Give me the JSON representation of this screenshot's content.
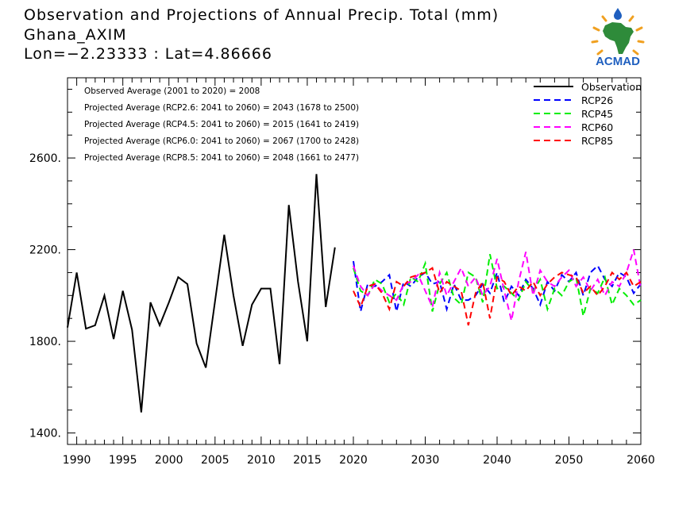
{
  "header": {
    "title": "Observation and Projections of Annual Precip. Total (mm)",
    "location": "Ghana_AXIM",
    "coords": "Lon=−2.23333 : Lat=4.86666"
  },
  "logo": {
    "text": "ACMAD",
    "icon": "africa-map-logo",
    "colors": {
      "africa": "#2e8b3a",
      "drop": "#1f5fbf",
      "sun": "#f0a020",
      "text": "#1f5fbf"
    }
  },
  "chart_data": {
    "type": "line",
    "ylim": [
      1350,
      2950
    ],
    "xlim": [
      1989,
      2060
    ],
    "yticks": [
      1400,
      1800,
      2200,
      2600
    ],
    "ytick_labels": [
      "1400.",
      "1800.",
      "2200.",
      "2600."
    ],
    "xticks": [
      1990,
      1995,
      2000,
      2005,
      2010,
      2015,
      2020,
      2030,
      2040,
      2050,
      2060
    ],
    "xtick_labels": [
      "1990",
      "1995",
      "2000",
      "2005",
      "2010",
      "2015",
      "2020",
      "2030",
      "2040",
      "2050",
      "2060"
    ],
    "annotations": [
      "Observed Average (2001 to 2020) = 2008",
      "Projected Average (RCP2.6: 2041 to 2060) = 2043 (1678 to 2500)",
      "Projected Average (RCP4.5: 2041 to 2060) = 2015 (1641 to 2419)",
      "Projected Average (RCP6.0: 2041 to 2060) = 2067 (1700 to 2428)",
      "Projected Average (RCP8.5: 2041 to 2060) = 2048 (1661 to 2477)"
    ],
    "series": [
      {
        "name": "Observation",
        "color": "#000000",
        "dashed": false,
        "x": [
          1989,
          1990,
          1991,
          1992,
          1993,
          1994,
          1995,
          1996,
          1997,
          1998,
          1999,
          2000,
          2001,
          2002,
          2003,
          2004,
          2005,
          2006,
          2007,
          2008,
          2009,
          2010,
          2011,
          2012,
          2013,
          2014,
          2015,
          2016,
          2017,
          2018,
          2019,
          2020
        ],
        "y": [
          1860,
          2100,
          1855,
          1870,
          2000,
          1810,
          2020,
          1850,
          1490,
          1970,
          1870,
          1970,
          2080,
          2050,
          1790,
          1685,
          1975,
          2265,
          2000,
          1780,
          1960,
          2030,
          2030,
          1700,
          2395,
          2060,
          1800,
          2530,
          1950,
          2210,
          null,
          null
        ]
      },
      {
        "name": "RCP26",
        "color": "#0000ff",
        "dashed": true,
        "x": [
          2020,
          2021,
          2022,
          2023,
          2024,
          2025,
          2026,
          2027,
          2028,
          2029,
          2030,
          2031,
          2032,
          2033,
          2034,
          2035,
          2036,
          2037,
          2038,
          2039,
          2040,
          2041,
          2042,
          2043,
          2044,
          2045,
          2046,
          2047,
          2048,
          2049,
          2050,
          2051,
          2052,
          2053,
          2054,
          2055,
          2056,
          2057,
          2058,
          2059,
          2060
        ],
        "y": [
          2150,
          1930,
          2050,
          2040,
          2060,
          2090,
          1930,
          2060,
          2040,
          2080,
          2100,
          2050,
          2060,
          1940,
          2050,
          1980,
          1980,
          2000,
          2050,
          2010,
          2100,
          1970,
          2040,
          2000,
          2070,
          2030,
          1960,
          2060,
          2020,
          2090,
          2060,
          2100,
          2000,
          2100,
          2130,
          2070,
          2040,
          2100,
          2080,
          2010,
          2050
        ]
      },
      {
        "name": "RCP45",
        "color": "#00ee00",
        "dashed": true,
        "x": [
          2020,
          2021,
          2022,
          2023,
          2024,
          2025,
          2026,
          2027,
          2028,
          2029,
          2030,
          2031,
          2032,
          2033,
          2034,
          2035,
          2036,
          2037,
          2038,
          2039,
          2040,
          2041,
          2042,
          2043,
          2044,
          2045,
          2046,
          2047,
          2048,
          2049,
          2050,
          2051,
          2052,
          2053,
          2054,
          2055,
          2056,
          2057,
          2058,
          2059,
          2060
        ],
        "y": [
          2120,
          2020,
          2000,
          2070,
          2050,
          1970,
          2010,
          1960,
          2080,
          2060,
          2140,
          1930,
          2050,
          2100,
          1990,
          1960,
          2100,
          2080,
          1970,
          2180,
          2030,
          2040,
          2010,
          1980,
          2060,
          2020,
          2070,
          1940,
          2030,
          2000,
          2060,
          2080,
          1910,
          2030,
          2010,
          2080,
          1960,
          2030,
          2000,
          1960,
          1980
        ]
      },
      {
        "name": "RCP60",
        "color": "#ff00ff",
        "dashed": true,
        "x": [
          2020,
          2021,
          2022,
          2023,
          2024,
          2025,
          2026,
          2027,
          2028,
          2029,
          2030,
          2031,
          2032,
          2033,
          2034,
          2035,
          2036,
          2037,
          2038,
          2039,
          2040,
          2041,
          2042,
          2043,
          2044,
          2045,
          2046,
          2047,
          2048,
          2049,
          2050,
          2051,
          2052,
          2053,
          2054,
          2055,
          2056,
          2057,
          2058,
          2059,
          2060
        ],
        "y": [
          2130,
          2040,
          2000,
          2050,
          2020,
          2000,
          1980,
          2050,
          2060,
          2090,
          2020,
          1950,
          2100,
          2000,
          2060,
          2120,
          2040,
          2080,
          2000,
          2040,
          2160,
          2020,
          1890,
          2060,
          2190,
          2000,
          2110,
          2060,
          2040,
          2080,
          2110,
          2040,
          2080,
          2020,
          2070,
          2000,
          2060,
          2040,
          2100,
          2200,
          2030
        ]
      },
      {
        "name": "RCP85",
        "color": "#ff0000",
        "dashed": true,
        "x": [
          2020,
          2021,
          2022,
          2023,
          2024,
          2025,
          2026,
          2027,
          2028,
          2029,
          2030,
          2031,
          2032,
          2033,
          2034,
          2035,
          2036,
          2037,
          2038,
          2039,
          2040,
          2041,
          2042,
          2043,
          2044,
          2045,
          2046,
          2047,
          2048,
          2049,
          2050,
          2051,
          2052,
          2053,
          2054,
          2055,
          2056,
          2057,
          2058,
          2059,
          2060
        ],
        "y": [
          2020,
          1950,
          2040,
          2050,
          2010,
          1940,
          2060,
          2040,
          2080,
          2090,
          2100,
          2120,
          2010,
          2060,
          2040,
          2020,
          1870,
          2010,
          2060,
          1900,
          2080,
          2060,
          2000,
          2040,
          2020,
          2060,
          2000,
          2050,
          2080,
          2100,
          2090,
          2080,
          2010,
          2040,
          2000,
          2040,
          2100,
          2070,
          2100,
          2040,
          2060
        ]
      }
    ]
  }
}
